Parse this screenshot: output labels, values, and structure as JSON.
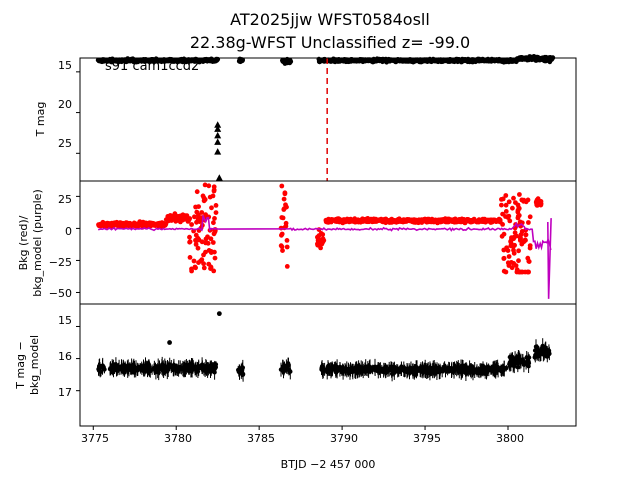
{
  "chart_data": {
    "title_line1": "AT2025jjw  WFST0584osll",
    "title_line2": "22.38g-WFST Unclassified z= -99.0",
    "xlabel": "BTJD −2 457 000",
    "x_ticks": [
      "3775",
      "3780",
      "3785",
      "3790",
      "3795",
      "3800"
    ],
    "xlim": [
      3774.2,
      3804.1
    ],
    "marker_time": 3789.1,
    "panels": [
      {
        "id": "flux",
        "type": "scatter",
        "ylabel": "T mag",
        "annotation": "s91 cam1ccd2",
        "ylim": [
          28.4,
          13.3
        ],
        "inverted": true,
        "y_ticks": [
          "15",
          "20",
          "25"
        ],
        "color": "#000000",
        "series": [
          {
            "name": "",
            "segments": [
              {
                "x": [
                  3775.3,
                  3782.5
                ],
                "y_center": 13.6,
                "spread": 0.25
              },
              {
                "x": [
                  3783.8,
                  3784.0
                ],
                "y_center": 13.6,
                "spread": 0.2
              },
              {
                "x": [
                  3786.4,
                  3786.9
                ],
                "y_center": 13.7,
                "spread": 0.35
              },
              {
                "x": [
                  3788.6,
                  3800.5
                ],
                "y_center": 13.6,
                "spread": 0.25
              },
              {
                "x": [
                  3800.5,
                  3802.7
                ],
                "y_center": 13.4,
                "spread": 0.4
              }
            ]
          }
        ],
        "outliers_x": [
          3782.5,
          3782.5,
          3782.5,
          3782.5,
          3782.5,
          3782.6
        ],
        "outliers_y": [
          21.5,
          22.0,
          22.8,
          23.6,
          24.8,
          28.0
        ]
      },
      {
        "id": "background",
        "type": "line",
        "ylabel_line1": "Bkg (red)/",
        "ylabel_line2": "bkg_model (purple)",
        "ylim": [
          -59,
          37
        ],
        "y_ticks": [
          "25",
          "0",
          "−25",
          "−50"
        ],
        "y_tick_values": [
          25,
          0,
          -25,
          -50
        ],
        "series": [
          {
            "name": "Bkg",
            "color": "#ff0000"
          },
          {
            "name": "bkg_model",
            "color": "#bf00bf"
          }
        ]
      },
      {
        "id": "difference",
        "type": "scatter",
        "ylabel_line1": "T mag −",
        "ylabel_line2": "bkg_model",
        "ylim": [
          18.1,
          14.3
        ],
        "inverted": true,
        "y_ticks": [
          "15",
          "16",
          "17"
        ],
        "y_tick_values": [
          15,
          16,
          17
        ],
        "color": "#000000"
      }
    ]
  }
}
